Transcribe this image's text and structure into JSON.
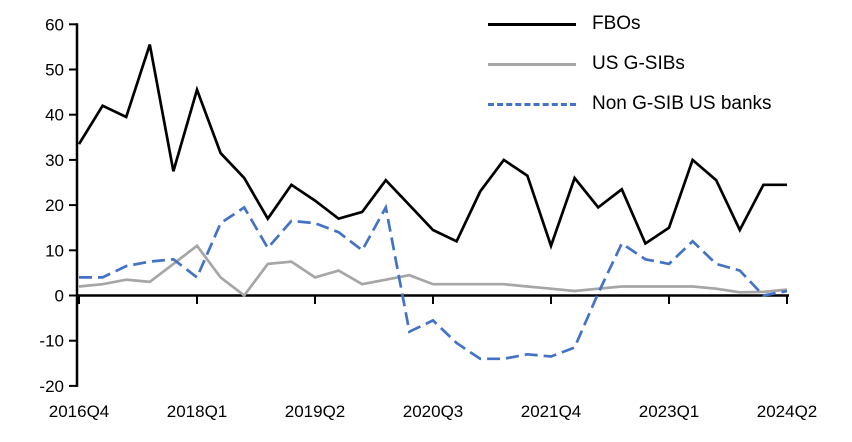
{
  "chart_data": {
    "type": "line",
    "title": "",
    "xlabel": "",
    "ylabel": "",
    "grid": "off",
    "legend_position": "top-right",
    "ylim": [
      -20,
      60
    ],
    "y_ticks": [
      60,
      50,
      40,
      30,
      20,
      10,
      0,
      -10,
      -20
    ],
    "x_categories": [
      "2016Q4",
      "2017Q1",
      "2017Q2",
      "2017Q3",
      "2017Q4",
      "2018Q1",
      "2018Q2",
      "2018Q3",
      "2018Q4",
      "2019Q1",
      "2019Q2",
      "2019Q3",
      "2019Q4",
      "2020Q1",
      "2020Q2",
      "2020Q3",
      "2020Q4",
      "2021Q1",
      "2021Q2",
      "2021Q3",
      "2021Q4",
      "2022Q1",
      "2022Q2",
      "2022Q3",
      "2022Q4",
      "2023Q1",
      "2023Q2",
      "2023Q3",
      "2023Q4",
      "2024Q1",
      "2024Q2"
    ],
    "x_shown_tick_indices": [
      0,
      5,
      10,
      15,
      20,
      25,
      30
    ],
    "x_shown_tick_labels": [
      "2016Q4",
      "2018Q1",
      "2019Q2",
      "2020Q3",
      "2021Q4",
      "2023Q1",
      "2024Q2"
    ],
    "series": [
      {
        "name": "FBOs",
        "color": "#000000",
        "line_style": "solid",
        "values": [
          33.5,
          42,
          39.5,
          55.5,
          27.5,
          45.5,
          31.5,
          26,
          17,
          24.5,
          21,
          17,
          18.5,
          25.5,
          20,
          14.5,
          12,
          23,
          30,
          26.5,
          11,
          26,
          19.5,
          23.5,
          11.5,
          15,
          30,
          25.5,
          14.5,
          24.5,
          24.5
        ]
      },
      {
        "name": "US G-SIBs",
        "color": "#A6A6A6",
        "line_style": "solid",
        "values": [
          2,
          2.5,
          3.5,
          3,
          7,
          11,
          4,
          0,
          7,
          7.5,
          4,
          5.5,
          2.5,
          3.5,
          4.5,
          2.5,
          2.5,
          2.5,
          2.5,
          2,
          1.5,
          1,
          1.5,
          2,
          2,
          2,
          2,
          1.5,
          0.7,
          0.8,
          1.3
        ]
      },
      {
        "name": "Non G-SIB US banks",
        "color": "#4472C4",
        "line_style": "dashed",
        "values": [
          4,
          4,
          6.5,
          7.5,
          8,
          4,
          16,
          19.5,
          10.5,
          16.5,
          16,
          14,
          10,
          19.5,
          -8,
          -5.5,
          -10.5,
          -14,
          -14,
          -13,
          -13.5,
          -11.5,
          0.5,
          11.5,
          8,
          7,
          12,
          7,
          5.5,
          0,
          1
        ]
      }
    ],
    "axis_color": "#000000"
  }
}
